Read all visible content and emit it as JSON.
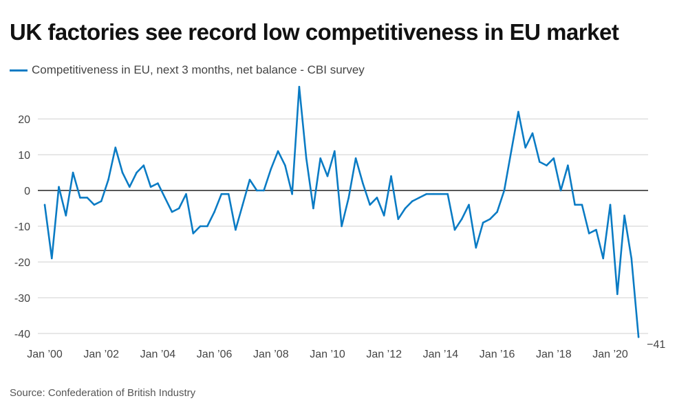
{
  "title": "UK factories see record low competitiveness in EU market",
  "source": "Source: Confederation of British Industry",
  "colors": {
    "line": "#0a7bc4",
    "grid": "#cfcfcf",
    "zero": "#222222"
  },
  "chart_data": {
    "type": "line",
    "title": "UK factories see record low competitiveness in EU market",
    "xlabel": "",
    "ylabel": "",
    "ylim": [
      -40,
      30
    ],
    "yticks": [
      20,
      10,
      0,
      -10,
      -20,
      -30,
      -40
    ],
    "ytick_labels": [
      "20",
      "10",
      "0",
      "-10",
      "-20",
      "-30",
      "-40"
    ],
    "xticks": [
      2000,
      2002,
      2004,
      2006,
      2008,
      2010,
      2012,
      2014,
      2016,
      2018,
      2020
    ],
    "xtick_labels": [
      "Jan ’00",
      "Jan ’02",
      "Jan ’04",
      "Jan ’06",
      "Jan ’08",
      "Jan ’10",
      "Jan ’12",
      "Jan ’14",
      "Jan ’16",
      "Jan ’18",
      "Jan ’20"
    ],
    "xlim": [
      2000,
      2021.25
    ],
    "grid": true,
    "legend": "top-left",
    "end_label": "−41",
    "series": [
      {
        "name": "Competitiveness in EU, next 3 months, net balance - CBI survey",
        "x": [
          2000.0,
          2000.25,
          2000.5,
          2000.75,
          2001.0,
          2001.25,
          2001.5,
          2001.75,
          2002.0,
          2002.25,
          2002.5,
          2002.75,
          2003.0,
          2003.25,
          2003.5,
          2003.75,
          2004.0,
          2004.25,
          2004.5,
          2004.75,
          2005.0,
          2005.25,
          2005.5,
          2005.75,
          2006.0,
          2006.25,
          2006.5,
          2006.75,
          2007.0,
          2007.25,
          2007.5,
          2007.75,
          2008.0,
          2008.25,
          2008.5,
          2008.75,
          2009.0,
          2009.25,
          2009.5,
          2009.75,
          2010.0,
          2010.25,
          2010.5,
          2010.75,
          2011.0,
          2011.25,
          2011.5,
          2011.75,
          2012.0,
          2012.25,
          2012.5,
          2012.75,
          2013.0,
          2013.25,
          2013.5,
          2013.75,
          2014.0,
          2014.25,
          2014.5,
          2014.75,
          2015.0,
          2015.25,
          2015.5,
          2015.75,
          2016.0,
          2016.25,
          2016.5,
          2016.75,
          2017.0,
          2017.25,
          2017.5,
          2017.75,
          2018.0,
          2018.25,
          2018.5,
          2018.75,
          2019.0,
          2019.25,
          2019.5,
          2019.75,
          2020.0,
          2020.25,
          2020.5,
          2020.75,
          2021.0,
          2021.25
        ],
        "values": [
          -4,
          -19,
          1,
          -7,
          5,
          -2,
          -2,
          -4,
          -3,
          3,
          12,
          5,
          1,
          5,
          7,
          1,
          2,
          -2,
          -6,
          -5,
          -1,
          -12,
          -10,
          -10,
          -6,
          -1,
          -1,
          -11,
          -4,
          3,
          0,
          0,
          6,
          11,
          7,
          -1,
          29,
          9,
          -5,
          9,
          4,
          11,
          -10,
          -2,
          9,
          2,
          -4,
          -2,
          -7,
          4,
          -8,
          -5,
          -3,
          -2,
          -1,
          -1,
          -1,
          -1,
          -11,
          -8,
          -4,
          -16,
          -9,
          -8,
          -6,
          0,
          11,
          22,
          12,
          16,
          8,
          7,
          9,
          0,
          7,
          -4,
          -4,
          -12,
          -11,
          -19,
          -4,
          -29,
          -7,
          -19,
          -41,
          null
        ]
      }
    ]
  }
}
